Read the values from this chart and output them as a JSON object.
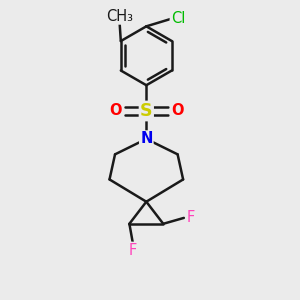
{
  "bg_color": "#ebebeb",
  "bond_color": "#1a1a1a",
  "bond_width": 1.8,
  "atom_colors": {
    "C": "#1a1a1a",
    "Cl": "#00bb00",
    "S": "#cccc00",
    "O": "#ff0000",
    "N": "#0000ee",
    "F": "#ff44bb"
  },
  "font_size": 10.5,
  "fig_size": [
    3.0,
    3.0
  ],
  "dpi": 100,
  "xlim": [
    -1.3,
    1.3
  ],
  "ylim": [
    -2.0,
    2.0
  ]
}
